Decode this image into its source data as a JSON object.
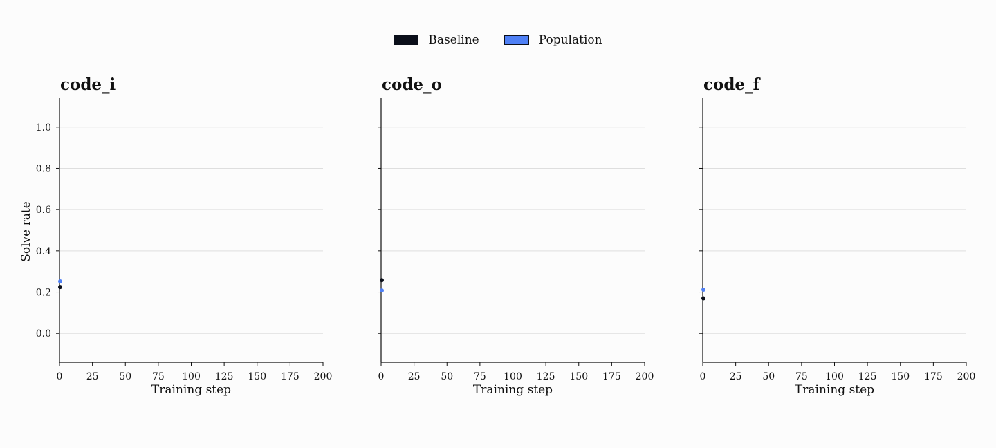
{
  "legend": [
    {
      "label": "Baseline",
      "color": "#0b0f1a"
    },
    {
      "label": "Population",
      "color": "#4f80f5"
    }
  ],
  "chart_data": [
    {
      "type": "scatter",
      "title": "code_i",
      "xlabel": "Training step",
      "ylabel": "Solve rate",
      "xlim": [
        0,
        200
      ],
      "ylim": [
        -0.14,
        1.14
      ],
      "xticks": [
        0,
        25,
        50,
        75,
        100,
        125,
        150,
        175,
        200
      ],
      "yticks": [
        0.0,
        0.2,
        0.4,
        0.6,
        0.8,
        1.0
      ],
      "ytick_labels": [
        "0.0",
        "0.2",
        "0.4",
        "0.6",
        "0.8",
        "1.0"
      ],
      "grid": "horizontal",
      "series": [
        {
          "name": "Baseline",
          "color": "#0b0f1a",
          "points": [
            [
              0,
              0.225
            ]
          ]
        },
        {
          "name": "Population",
          "color": "#4f80f5",
          "points": [
            [
              0,
              0.252
            ]
          ]
        }
      ]
    },
    {
      "type": "scatter",
      "title": "code_o",
      "xlabel": "Training step",
      "ylabel": "",
      "xlim": [
        0,
        200
      ],
      "ylim": [
        -0.14,
        1.14
      ],
      "xticks": [
        0,
        25,
        50,
        75,
        100,
        125,
        150,
        175,
        200
      ],
      "yticks": [
        0.0,
        0.2,
        0.4,
        0.6,
        0.8,
        1.0
      ],
      "ytick_labels": [],
      "grid": "horizontal",
      "series": [
        {
          "name": "Baseline",
          "color": "#0b0f1a",
          "points": [
            [
              0,
              0.258
            ]
          ]
        },
        {
          "name": "Population",
          "color": "#4f80f5",
          "points": [
            [
              0,
              0.208
            ]
          ]
        }
      ]
    },
    {
      "type": "scatter",
      "title": "code_f",
      "xlabel": "Training step",
      "ylabel": "",
      "xlim": [
        0,
        200
      ],
      "ylim": [
        -0.14,
        1.14
      ],
      "xticks": [
        0,
        25,
        50,
        75,
        100,
        125,
        150,
        175,
        200
      ],
      "yticks": [
        0.0,
        0.2,
        0.4,
        0.6,
        0.8,
        1.0
      ],
      "ytick_labels": [],
      "grid": "horizontal",
      "series": [
        {
          "name": "Baseline",
          "color": "#0b0f1a",
          "points": [
            [
              0,
              0.17
            ]
          ]
        },
        {
          "name": "Population",
          "color": "#4f80f5",
          "points": [
            [
              0,
              0.212
            ]
          ]
        }
      ]
    }
  ]
}
